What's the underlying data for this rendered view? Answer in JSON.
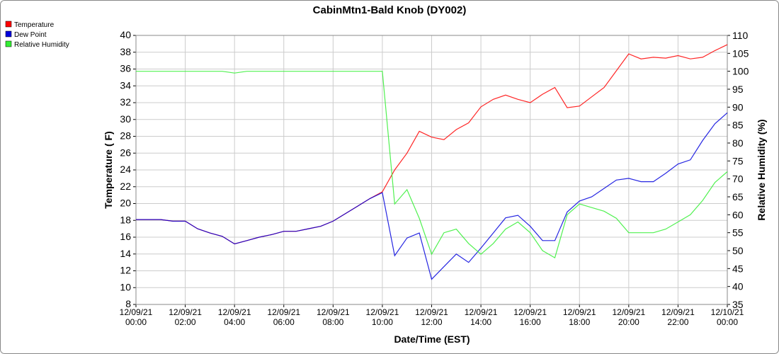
{
  "chart_data": {
    "type": "line",
    "title": "CabinMtn1-Bald Knob (DY002)",
    "xlabel": "Date/Time (EST)",
    "ylabel": "Temperature ( F)",
    "y2label": "Relative Humidity (%)",
    "x": [
      "12/09/21 00:00",
      "12/09/21 00:30",
      "12/09/21 01:00",
      "12/09/21 01:30",
      "12/09/21 02:00",
      "12/09/21 02:30",
      "12/09/21 03:00",
      "12/09/21 03:30",
      "12/09/21 04:00",
      "12/09/21 04:30",
      "12/09/21 05:00",
      "12/09/21 05:30",
      "12/09/21 06:00",
      "12/09/21 06:30",
      "12/09/21 07:00",
      "12/09/21 07:30",
      "12/09/21 08:00",
      "12/09/21 08:30",
      "12/09/21 09:00",
      "12/09/21 09:30",
      "12/09/21 10:00",
      "12/09/21 10:30",
      "12/09/21 11:00",
      "12/09/21 11:30",
      "12/09/21 12:00",
      "12/09/21 12:30",
      "12/09/21 13:00",
      "12/09/21 13:30",
      "12/09/21 14:00",
      "12/09/21 14:30",
      "12/09/21 15:00",
      "12/09/21 15:30",
      "12/09/21 16:00",
      "12/09/21 16:30",
      "12/09/21 17:00",
      "12/09/21 17:30",
      "12/09/21 18:00",
      "12/09/21 18:30",
      "12/09/21 19:00",
      "12/09/21 19:30",
      "12/09/21 20:00",
      "12/09/21 20:30",
      "12/09/21 21:00",
      "12/09/21 21:30",
      "12/09/21 22:00",
      "12/09/21 22:30",
      "12/09/21 23:00",
      "12/09/21 23:30",
      "12/10/21 00:00"
    ],
    "series": [
      {
        "name": "Temperature",
        "color": "#ff0000",
        "values": [
          18.1,
          18.1,
          18.1,
          17.9,
          17.9,
          17.0,
          16.5,
          16.1,
          15.2,
          15.6,
          16.0,
          16.3,
          16.7,
          16.7,
          17.0,
          17.3,
          17.9,
          18.8,
          19.7,
          20.6,
          21.4,
          24.0,
          26.0,
          28.6,
          27.9,
          27.6,
          28.8,
          29.6,
          31.5,
          32.4,
          32.9,
          32.4,
          32.0,
          33.0,
          33.8,
          31.4,
          31.6,
          32.7,
          33.8,
          35.8,
          37.8,
          37.2,
          37.4,
          37.3,
          37.6,
          37.2,
          37.4,
          38.2,
          38.9
        ]
      },
      {
        "name": "Dew Point",
        "color": "#0000dd",
        "values": [
          18.1,
          18.1,
          18.1,
          17.9,
          17.9,
          17.0,
          16.5,
          16.1,
          15.2,
          15.6,
          16.0,
          16.3,
          16.7,
          16.7,
          17.0,
          17.3,
          17.9,
          18.8,
          19.7,
          20.6,
          21.3,
          13.8,
          15.9,
          16.5,
          11.0,
          12.5,
          14.0,
          13.0,
          14.7,
          16.5,
          18.3,
          18.6,
          17.3,
          15.6,
          15.6,
          19.0,
          20.3,
          20.8,
          21.8,
          22.8,
          23.0,
          22.6,
          22.6,
          23.6,
          24.7,
          25.2,
          27.5,
          29.5,
          30.8
        ]
      },
      {
        "name": "Relative Humidity",
        "color": "#33ee33",
        "axis": "y2",
        "values": [
          100,
          100,
          100,
          100,
          100,
          100,
          100,
          100,
          99.5,
          100,
          100,
          100,
          100,
          100,
          100,
          100,
          100,
          100,
          100,
          100,
          100,
          63,
          67,
          59,
          49,
          55,
          56,
          52,
          49,
          52,
          56,
          58,
          55,
          50,
          48,
          60,
          63,
          62,
          61,
          59,
          55,
          55,
          55,
          56,
          58,
          60,
          64,
          69,
          72
        ]
      }
    ],
    "xlim": [
      "12/09/21 00:00",
      "12/10/21 00:00"
    ],
    "xticks": [
      "12/09/21 00:00",
      "12/09/21 02:00",
      "12/09/21 04:00",
      "12/09/21 06:00",
      "12/09/21 08:00",
      "12/09/21 10:00",
      "12/09/21 12:00",
      "12/09/21 14:00",
      "12/09/21 16:00",
      "12/09/21 18:00",
      "12/09/21 20:00",
      "12/09/21 22:00",
      "12/10/21 00:00"
    ],
    "ylim": [
      8,
      40
    ],
    "yticks": [
      8,
      10,
      12,
      14,
      16,
      18,
      20,
      22,
      24,
      26,
      28,
      30,
      32,
      34,
      36,
      38,
      40
    ],
    "y2lim": [
      35,
      110
    ],
    "y2ticks": [
      35,
      40,
      45,
      50,
      55,
      60,
      65,
      70,
      75,
      80,
      85,
      90,
      95,
      100,
      105,
      110
    ],
    "grid": true,
    "legend": "top-left"
  }
}
